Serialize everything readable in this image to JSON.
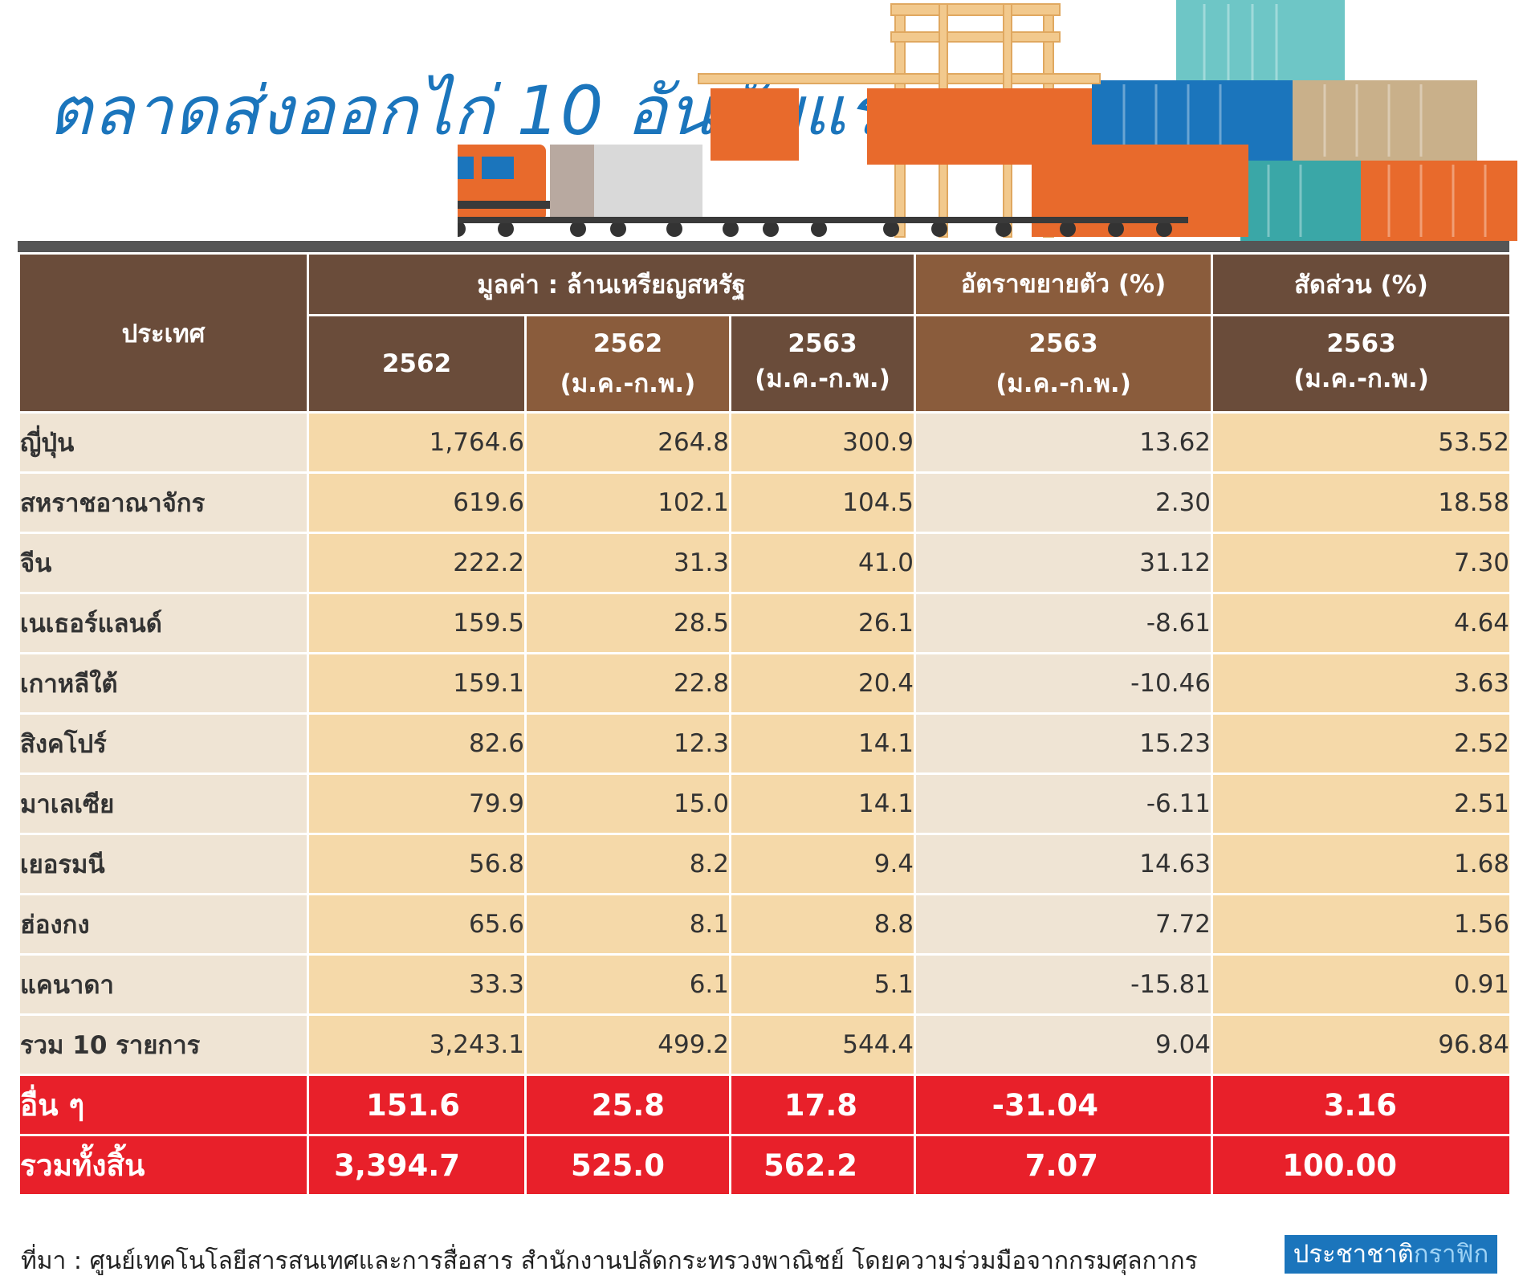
{
  "title": "ตลาดส่งออกไก่ 10 อันดับแรก",
  "colors": {
    "title_blue": "#1b75bc",
    "header_brown": "#6a4c3a",
    "header_brown_light": "#8a5c3c",
    "cell_light": "#efe4d4",
    "cell_tan": "#f5d9a9",
    "red": "#e8202a"
  },
  "table": {
    "header": {
      "country": "ประเทศ",
      "value_group": "มูลค่า : ล้านเหรียญสหรัฐ",
      "growth_group": "อัตราขยายตัว (%)",
      "share_group": "สัดส่วน (%)",
      "col1": "2562",
      "col2_year": "2562",
      "col2_period": "(ม.ค.-ก.พ.)",
      "col3_year": "2563",
      "col3_period": "(ม.ค.-ก.พ.)",
      "col4_year": "2563",
      "col4_period": "(ม.ค.-ก.พ.)",
      "col5_year": "2563",
      "col5_period": "(ม.ค.-ก.พ.)"
    },
    "rows": [
      [
        "ญี่ปุ่น",
        "1,764.6",
        "264.8",
        "300.9",
        "13.62",
        "53.52"
      ],
      [
        "สหราชอาณาจักร",
        "619.6",
        "102.1",
        "104.5",
        "2.30",
        "18.58"
      ],
      [
        "จีน",
        "222.2",
        "31.3",
        "41.0",
        "31.12",
        "7.30"
      ],
      [
        "เนเธอร์แลนด์",
        "159.5",
        "28.5",
        "26.1",
        "-8.61",
        "4.64"
      ],
      [
        "เกาหลีใต้",
        "159.1",
        "22.8",
        "20.4",
        "-10.46",
        "3.63"
      ],
      [
        "สิงคโปร์",
        "82.6",
        "12.3",
        "14.1",
        "15.23",
        "2.52"
      ],
      [
        "มาเลเซีย",
        "79.9",
        "15.0",
        "14.1",
        "-6.11",
        "2.51"
      ],
      [
        "เยอรมนี",
        "56.8",
        "8.2",
        "9.4",
        "14.63",
        "1.68"
      ],
      [
        "ฮ่องกง",
        "65.6",
        "8.1",
        "8.8",
        "7.72",
        "1.56"
      ],
      [
        "แคนาดา",
        "33.3",
        "6.1",
        "5.1",
        "-15.81",
        "0.91"
      ],
      [
        "รวม 10 รายการ",
        "3,243.1",
        "499.2",
        "544.4",
        "9.04",
        "96.84"
      ]
    ],
    "others": [
      "อื่น ๆ",
      "151.6",
      "25.8",
      "17.8",
      "-31.04",
      "3.16"
    ],
    "total": [
      "รวมทั้งสิ้น",
      "3,394.7",
      "525.0",
      "562.2",
      "7.07",
      "100.00"
    ]
  },
  "source": "ที่มา : ศูนย์เทคโนโลยีสารสนเทศและการสื่อสาร สำนักงานปลัดกระทรวงพาณิชย์ โดยความร่วมมือจากกรมศุลกากร",
  "brand": {
    "part1": "ประชาชาติ",
    "part2": "กราฟิก"
  }
}
